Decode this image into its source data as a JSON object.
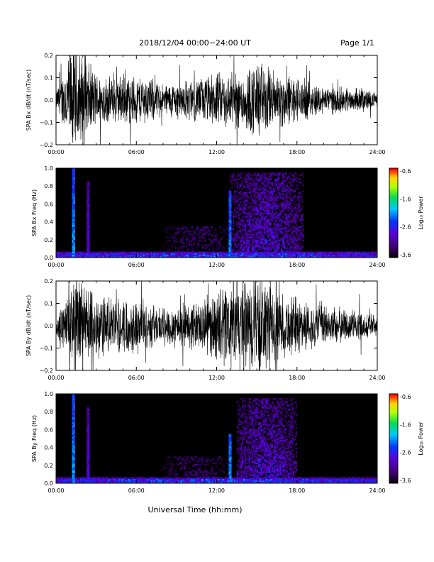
{
  "header": {
    "title": "2018/12/04  00:00−24:00 UT",
    "page": "Page 1/1"
  },
  "xlabel": "Universal Time (hh:mm)",
  "x_ticks": [
    "00:00",
    "06:00",
    "12:00",
    "18:00",
    "24:00"
  ],
  "chart_data": [
    {
      "type": "line",
      "ylabel": "SPA Bx dB/dt (nT/sec)",
      "ylim": [
        -0.2,
        0.2
      ],
      "y_ticks": [
        "0.2",
        "0.1",
        "0.0",
        "−0.1",
        "−0.2"
      ],
      "xlim_hours": [
        0,
        24
      ],
      "series": [
        {
          "hours": [
            0,
            0.5,
            1,
            1.5,
            2,
            3,
            4,
            5,
            6,
            7,
            8,
            9,
            10,
            11,
            12,
            13,
            14,
            15,
            16,
            17,
            18,
            19,
            20,
            21,
            22,
            23,
            24
          ],
          "amplitude": [
            0.04,
            0.12,
            0.24,
            0.24,
            0.2,
            0.12,
            0.1,
            0.11,
            0.11,
            0.1,
            0.07,
            0.08,
            0.09,
            0.1,
            0.12,
            0.12,
            0.13,
            0.18,
            0.14,
            0.12,
            0.1,
            0.08,
            0.06,
            0.06,
            0.05,
            0.05,
            0.03
          ]
        }
      ]
    },
    {
      "type": "heatmap",
      "ylabel": "SPA Bx Freq (Hz)",
      "ylim": [
        0.0,
        1.0
      ],
      "y_ticks": [
        "1.0",
        "0.8",
        "0.6",
        "0.4",
        "0.2",
        "0.0"
      ],
      "xlim_hours": [
        0,
        24
      ],
      "colorbar": {
        "label": "Log₁₀ Power",
        "range": [
          -3.6,
          -0.6
        ],
        "ticks": [
          "-0.6",
          "-1.6",
          "-2.6",
          "-3.6"
        ]
      },
      "enhanced_regions": [
        {
          "hours": [
            13.0,
            18.5
          ],
          "freq_max": 0.95,
          "level": -2.4
        },
        {
          "hours": [
            8.0,
            13.0
          ],
          "freq_max": 0.35,
          "level": -3.0
        },
        {
          "hours": [
            0.0,
            24.0
          ],
          "freq_max": 0.05,
          "level": -2.0
        }
      ],
      "spikes": [
        {
          "hour": 1.3,
          "freq_max": 1.0,
          "level": -1.8
        },
        {
          "hour": 2.4,
          "freq_max": 0.85,
          "level": -2.5
        },
        {
          "hour": 13.0,
          "freq_max": 0.75,
          "level": -1.9
        }
      ]
    },
    {
      "type": "line",
      "ylabel": "SPA By dB/dt (nT/sec)",
      "ylim": [
        -0.2,
        0.2
      ],
      "y_ticks": [
        "0.2",
        "0.1",
        "0.0",
        "−0.1",
        "−0.2"
      ],
      "xlim_hours": [
        0,
        24
      ],
      "series": [
        {
          "hours": [
            0,
            0.5,
            1,
            1.5,
            2,
            3,
            4,
            5,
            6,
            7,
            8,
            9,
            10,
            11,
            12,
            13,
            14,
            15,
            16,
            17,
            18,
            19,
            20,
            21,
            22,
            23,
            24
          ],
          "amplitude": [
            0.06,
            0.1,
            0.2,
            0.24,
            0.2,
            0.15,
            0.12,
            0.12,
            0.12,
            0.1,
            0.08,
            0.1,
            0.1,
            0.12,
            0.15,
            0.2,
            0.2,
            0.24,
            0.18,
            0.14,
            0.13,
            0.1,
            0.09,
            0.08,
            0.07,
            0.06,
            0.05
          ]
        }
      ]
    },
    {
      "type": "heatmap",
      "ylabel": "SPA By Freq (Hz)",
      "ylim": [
        0.0,
        1.0
      ],
      "y_ticks": [
        "1.0",
        "0.8",
        "0.6",
        "0.4",
        "0.2",
        "0.0"
      ],
      "xlim_hours": [
        0,
        24
      ],
      "colorbar": {
        "label": "Log₁₀ Power",
        "range": [
          -3.6,
          -0.6
        ],
        "ticks": [
          "-0.6",
          "-1.6",
          "-2.6",
          "-3.6"
        ]
      },
      "enhanced_regions": [
        {
          "hours": [
            13.5,
            18.0
          ],
          "freq_max": 0.95,
          "level": -2.4
        },
        {
          "hours": [
            8.0,
            13.0
          ],
          "freq_max": 0.3,
          "level": -3.0
        },
        {
          "hours": [
            0.0,
            24.0
          ],
          "freq_max": 0.05,
          "level": -2.0
        }
      ],
      "spikes": [
        {
          "hour": 1.3,
          "freq_max": 1.0,
          "level": -1.8
        },
        {
          "hour": 2.4,
          "freq_max": 0.85,
          "level": -2.5
        },
        {
          "hour": 13.0,
          "freq_max": 0.55,
          "level": -1.9
        }
      ]
    }
  ]
}
